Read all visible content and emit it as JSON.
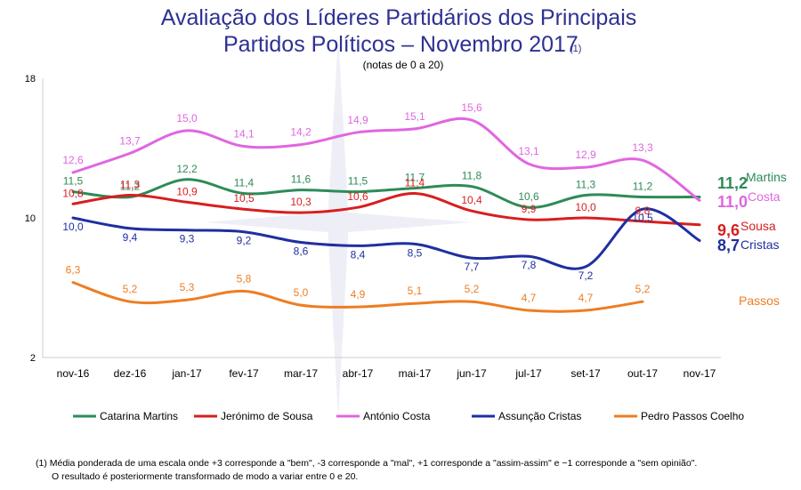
{
  "chart_data": {
    "type": "line",
    "title_line1": "Avaliação dos Líderes Partidários dos Principais",
    "title_line2": "Partidos Políticos – Novembro 2017",
    "title_note": "(1)",
    "subtitle": "(notas de 0 a 20)",
    "categories": [
      "nov-16",
      "dez-16",
      "jan-17",
      "fev-17",
      "mar-17",
      "abr-17",
      "mai-17",
      "jun-17",
      "jul-17",
      "set-17",
      "out-17",
      "nov-17"
    ],
    "y_ticks": [
      "18",
      "10",
      "2"
    ],
    "ylim": [
      2,
      18
    ],
    "series": [
      {
        "name": "Catarina Martins",
        "color": "#2e8b57",
        "values": [
          11.5,
          11.2,
          12.2,
          11.4,
          11.6,
          11.5,
          11.7,
          11.8,
          10.6,
          11.3,
          11.2,
          11.2
        ],
        "labels": [
          "11,5",
          "11,2",
          "12,2",
          "11,4",
          "11,6",
          "11,5",
          "11,7",
          "11,8",
          "10,6",
          "11,3",
          "11,2",
          ""
        ],
        "end_value": "11,2",
        "end_name": "Martins"
      },
      {
        "name": "Jerónimo de Sousa",
        "color": "#d81e1e",
        "values": [
          10.8,
          11.3,
          10.9,
          10.5,
          10.3,
          10.6,
          11.4,
          10.4,
          9.9,
          10.0,
          9.8,
          9.6
        ],
        "labels": [
          "10,8",
          "11,3",
          "10,9",
          "10,5",
          "10,3",
          "10,6",
          "11,4",
          "10,4",
          "9,9",
          "10,0",
          "9,8",
          ""
        ],
        "end_value": "9,6",
        "end_name": "Sousa"
      },
      {
        "name": "António Costa",
        "color": "#e066e0",
        "values": [
          12.6,
          13.7,
          15.0,
          14.1,
          14.2,
          14.9,
          15.1,
          15.6,
          13.1,
          12.9,
          13.3,
          11.0
        ],
        "labels": [
          "12,6",
          "13,7",
          "15,0",
          "14,1",
          "14,2",
          "14,9",
          "15,1",
          "15,6",
          "13,1",
          "12,9",
          "13,3",
          ""
        ],
        "end_value": "11,0",
        "end_name": "Costa"
      },
      {
        "name": "Assunção Cristas",
        "color": "#1f2fa0",
        "values": [
          10.0,
          9.4,
          9.3,
          9.2,
          8.6,
          8.4,
          8.5,
          7.7,
          7.8,
          7.2,
          10.5,
          8.7
        ],
        "labels": [
          "10,0",
          "9,4",
          "9,3",
          "9,2",
          "8,6",
          "8,4",
          "8,5",
          "7,7",
          "7,8",
          "7,2",
          "10,5",
          ""
        ],
        "end_value": "8,7",
        "end_name": "Cristas"
      },
      {
        "name": "Pedro Passos Coelho",
        "color": "#ee7d22",
        "values": [
          6.3,
          5.2,
          5.3,
          5.8,
          5.0,
          4.9,
          5.1,
          5.2,
          4.7,
          4.7,
          5.2,
          null
        ],
        "labels": [
          "6,3",
          "5,2",
          "5,3",
          "5,8",
          "5,0",
          "4,9",
          "5,1",
          "5,2",
          "4,7",
          "4,7",
          "5,2",
          ""
        ],
        "end_value": "",
        "end_name": "Passos"
      }
    ],
    "legend_position": "bottom"
  },
  "footnote": {
    "line1": "(1)  Média ponderada de uma escala onde +3 corresponde a \"bem\", -3 corresponde a \"mal\", +1 corresponde a \"assim-assim\" e −1 corresponde a \"sem opinião\".",
    "line2": "O resultado é posteriormente transformado de modo a variar entre 0 e 20."
  }
}
